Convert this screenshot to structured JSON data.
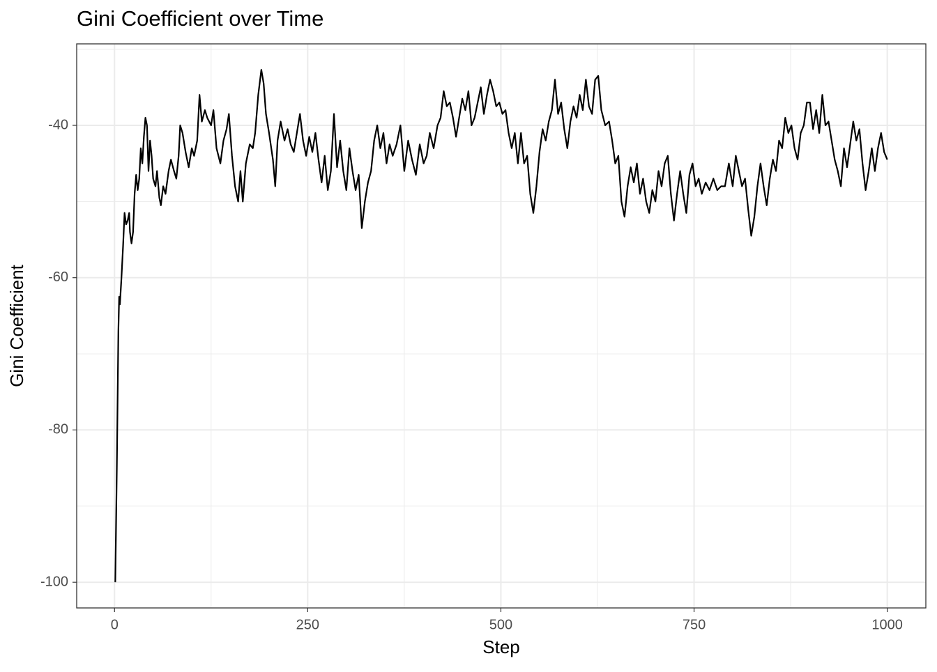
{
  "chart_data": {
    "type": "line",
    "title": "Gini Coefficient over Time",
    "x_label": "Step",
    "y_label": "Gini Coefficient",
    "color": "#000000",
    "grid": true,
    "xlim": [
      -48.95,
      1049.95
    ],
    "ylim": [
      -103.37,
      -29.3
    ],
    "xticks": [
      0,
      250,
      500,
      750,
      1000
    ],
    "yticks": [
      -100,
      -80,
      -60,
      -40
    ],
    "x_minor_grid": [
      125,
      375,
      625,
      875
    ],
    "y_minor_grid": [
      -90,
      -70,
      -50,
      -30
    ],
    "x": [
      1,
      3,
      5,
      6,
      7,
      9,
      11,
      13,
      15,
      17,
      19,
      20,
      22,
      24,
      26,
      28,
      30,
      32,
      34,
      36,
      38,
      40,
      42,
      44,
      46,
      48,
      50,
      53,
      55,
      58,
      60,
      63,
      66,
      70,
      73,
      77,
      80,
      83,
      85,
      88,
      92,
      96,
      100,
      103,
      107,
      110,
      113,
      117,
      120,
      125,
      128,
      132,
      137,
      141,
      145,
      148,
      152,
      156,
      160,
      163,
      166,
      170,
      175,
      179,
      182,
      186,
      190,
      193,
      196,
      200,
      205,
      208,
      211,
      215,
      220,
      224,
      228,
      232,
      236,
      240,
      244,
      248,
      252,
      256,
      260,
      264,
      268,
      272,
      276,
      280,
      284,
      288,
      292,
      296,
      300,
      304,
      308,
      312,
      316,
      320,
      324,
      328,
      332,
      336,
      340,
      344,
      348,
      352,
      356,
      360,
      365,
      370,
      375,
      380,
      385,
      390,
      395,
      400,
      404,
      408,
      413,
      418,
      422,
      426,
      430,
      434,
      438,
      442,
      446,
      450,
      454,
      458,
      462,
      466,
      470,
      474,
      478,
      482,
      486,
      490,
      494,
      498,
      502,
      506,
      510,
      514,
      518,
      522,
      526,
      530,
      534,
      538,
      542,
      546,
      550,
      554,
      558,
      562,
      566,
      570,
      574,
      578,
      582,
      586,
      590,
      594,
      598,
      602,
      606,
      610,
      614,
      618,
      622,
      626,
      630,
      635,
      640,
      644,
      648,
      652,
      656,
      660,
      664,
      668,
      672,
      676,
      680,
      684,
      688,
      692,
      696,
      700,
      704,
      708,
      712,
      716,
      720,
      724,
      728,
      732,
      736,
      740,
      744,
      748,
      752,
      756,
      760,
      765,
      770,
      775,
      780,
      785,
      790,
      795,
      800,
      804,
      808,
      812,
      816,
      820,
      824,
      828,
      832,
      836,
      840,
      844,
      848,
      852,
      856,
      860,
      864,
      868,
      872,
      876,
      880,
      884,
      888,
      892,
      896,
      900,
      904,
      908,
      912,
      916,
      920,
      924,
      928,
      932,
      936,
      940,
      944,
      948,
      952,
      956,
      960,
      964,
      968,
      972,
      976,
      980,
      984,
      988,
      992,
      996,
      1000
    ],
    "values": [
      -100,
      -85,
      -67,
      -62.5,
      -63.5,
      -60,
      -56,
      -51.5,
      -53,
      -52.5,
      -51.5,
      -54,
      -55.5,
      -54,
      -49,
      -46.5,
      -48.5,
      -47,
      -43,
      -45,
      -41.5,
      -39,
      -40,
      -46,
      -42,
      -44,
      -47,
      -48,
      -46,
      -49.5,
      -50.5,
      -48,
      -49,
      -46,
      -44.5,
      -46,
      -47,
      -44,
      -40,
      -41,
      -43.5,
      -45.5,
      -43,
      -44,
      -42,
      -36,
      -39.5,
      -38,
      -39,
      -40,
      -38,
      -43,
      -45,
      -42,
      -40.5,
      -38.5,
      -44,
      -48,
      -50,
      -46,
      -50,
      -45,
      -42.5,
      -43,
      -41,
      -36,
      -32.7,
      -34.5,
      -38.5,
      -41,
      -44.5,
      -48,
      -42,
      -39.5,
      -42,
      -40.5,
      -42.5,
      -43.5,
      -41,
      -38.5,
      -42,
      -44,
      -41.5,
      -43.5,
      -41,
      -44.5,
      -47.5,
      -44,
      -48.5,
      -46,
      -38.5,
      -45.5,
      -42,
      -46,
      -48.5,
      -43,
      -46,
      -48.5,
      -46.5,
      -53.5,
      -50,
      -47.5,
      -46,
      -42,
      -40,
      -43,
      -41,
      -45,
      -42.5,
      -44,
      -42.5,
      -40,
      -46,
      -42,
      -44.5,
      -46.5,
      -42.5,
      -45,
      -44,
      -41,
      -43,
      -40,
      -39,
      -35.5,
      -37.5,
      -37,
      -39,
      -41.5,
      -39,
      -36.5,
      -38,
      -35.5,
      -40,
      -39,
      -37,
      -35,
      -38.5,
      -36,
      -34,
      -35.5,
      -37.5,
      -37,
      -38.5,
      -38,
      -41,
      -43,
      -41,
      -45,
      -41,
      -45,
      -44,
      -49,
      -51.5,
      -48,
      -43.5,
      -40.5,
      -42,
      -39.5,
      -38,
      -34,
      -38.5,
      -37,
      -40.5,
      -43,
      -39.5,
      -37.5,
      -39,
      -36,
      -38,
      -34,
      -37.5,
      -38.5,
      -34,
      -33.5,
      -38,
      -40,
      -39.5,
      -42,
      -45,
      -44,
      -50,
      -52,
      -48,
      -45.5,
      -47.5,
      -45,
      -49,
      -47,
      -50,
      -51.5,
      -48.5,
      -50,
      -46,
      -48,
      -45,
      -44,
      -49,
      -52.5,
      -49,
      -46,
      -49,
      -51.5,
      -46.5,
      -45,
      -48,
      -47,
      -49,
      -47.5,
      -48.5,
      -47,
      -48.5,
      -48,
      -48,
      -45,
      -48,
      -44,
      -46,
      -48,
      -47,
      -51,
      -54.5,
      -52,
      -48,
      -45,
      -48,
      -50.5,
      -47,
      -44.5,
      -46,
      -42,
      -43,
      -39,
      -41,
      -40,
      -43,
      -44.5,
      -41,
      -40,
      -37,
      -37,
      -40.5,
      -38,
      -41,
      -36,
      -40,
      -39.5,
      -42,
      -44.5,
      -46,
      -48,
      -43,
      -45.5,
      -42.5,
      -39.5,
      -42,
      -40.5,
      -45,
      -48.5,
      -46,
      -43,
      -46,
      -43,
      -41,
      -43.5,
      -44.5
    ]
  }
}
